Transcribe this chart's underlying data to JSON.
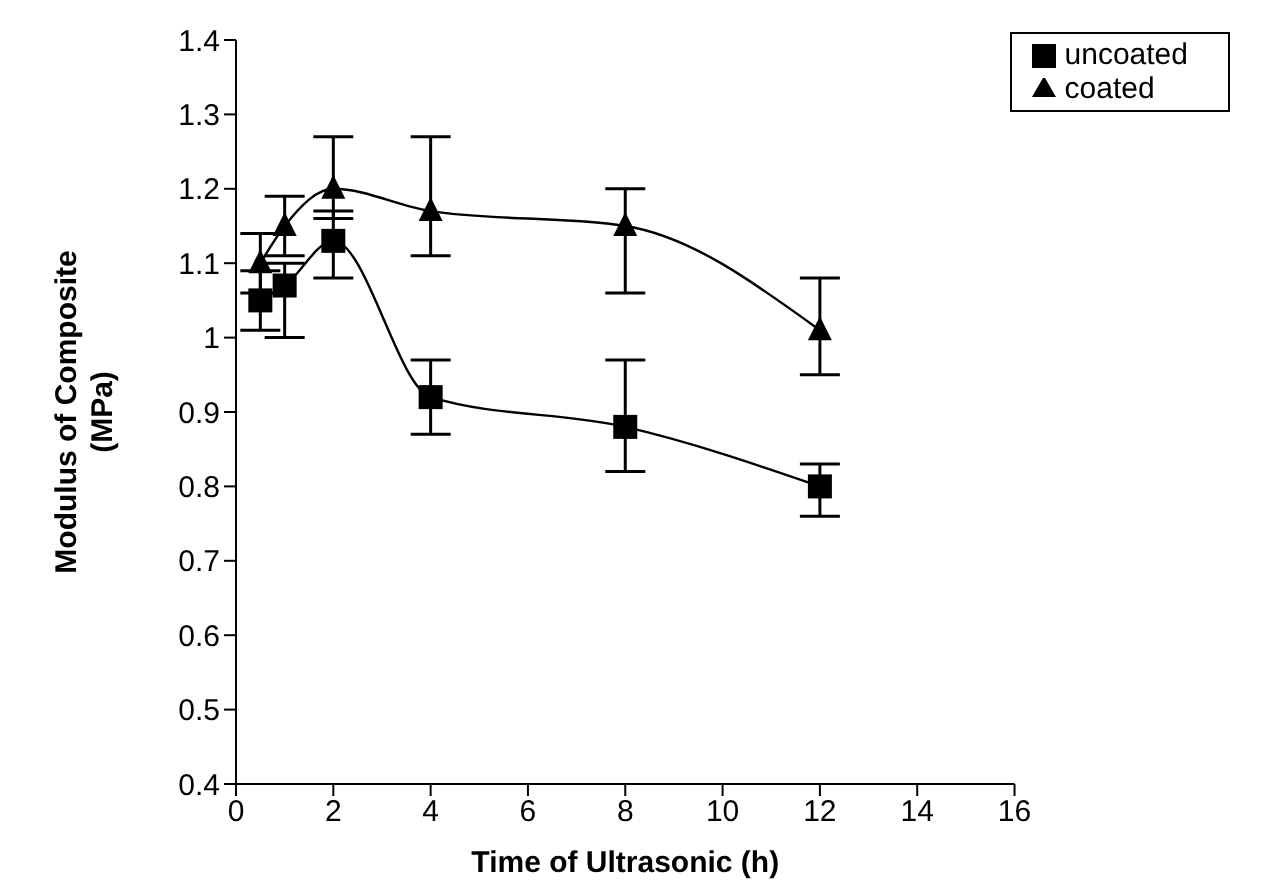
{
  "chart_data": {
    "type": "line",
    "xlabel": "Time of Ultrasonic (h)",
    "ylabel": "Modulus of Composite\n(MPa)",
    "x": [
      0.5,
      1,
      2,
      4,
      8,
      12
    ],
    "series": [
      {
        "name": "uncoated",
        "color": "#000000",
        "marker": "square",
        "values": [
          1.05,
          1.07,
          1.13,
          0.92,
          0.88,
          0.8
        ],
        "errors": [
          [
            1.01,
            1.09
          ],
          [
            1.0,
            1.1
          ],
          [
            1.08,
            1.17
          ],
          [
            0.87,
            0.97
          ],
          [
            0.82,
            0.97
          ],
          [
            0.76,
            0.83
          ]
        ]
      },
      {
        "name": "coated",
        "color": "#000000",
        "marker": "triangle",
        "values": [
          1.1,
          1.15,
          1.2,
          1.17,
          1.15,
          1.01
        ],
        "errors": [
          [
            1.06,
            1.14
          ],
          [
            1.11,
            1.19
          ],
          [
            1.16,
            1.27
          ],
          [
            1.11,
            1.27
          ],
          [
            1.06,
            1.2
          ],
          [
            0.95,
            1.08
          ]
        ]
      }
    ],
    "xlim": [
      0,
      16
    ],
    "xticks": [
      0,
      2,
      4,
      6,
      8,
      10,
      12,
      14,
      16
    ],
    "ylim": [
      0.4,
      1.4
    ],
    "yticks": [
      0.4,
      0.5,
      0.6,
      0.7,
      0.8,
      0.9,
      1,
      1.1,
      1.2,
      1.3,
      1.4
    ],
    "legend": "top right",
    "line_style": "solid"
  }
}
